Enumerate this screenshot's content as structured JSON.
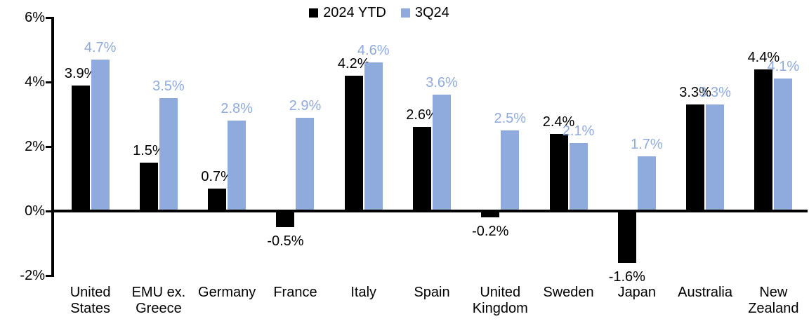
{
  "chart_data": {
    "type": "bar",
    "title": "",
    "xlabel": "",
    "ylabel": "",
    "categories": [
      "United\nStates",
      "EMU ex.\nGreece",
      "Germany",
      "France",
      "Italy",
      "Spain",
      "United\nKingdom",
      "Sweden",
      "Japan",
      "Australia",
      "New\nZealand"
    ],
    "series": [
      {
        "name": "2024 YTD",
        "color": "#000000",
        "values": [
          3.9,
          1.5,
          0.7,
          -0.5,
          4.2,
          2.6,
          -0.2,
          2.4,
          -1.6,
          3.3,
          4.4
        ],
        "labels": [
          "3.9%",
          "1.5%",
          "0.7%",
          "-0.5%",
          "4.2%",
          "2.6%",
          "-0.2%",
          "2.4%",
          "-1.6%",
          "3.3%",
          "4.4%"
        ]
      },
      {
        "name": "3Q24",
        "color": "#8FAADC",
        "values": [
          4.7,
          3.5,
          2.8,
          2.9,
          4.6,
          3.6,
          2.5,
          2.1,
          1.7,
          3.3,
          4.1
        ],
        "labels": [
          "4.7%",
          "3.5%",
          "2.8%",
          "2.9%",
          "4.6%",
          "3.6%",
          "2.5%",
          "2.1%",
          "1.7%",
          "3.3%",
          "4.1%"
        ]
      }
    ],
    "ylim": [
      -2,
      6
    ],
    "yticks": [
      {
        "value": 6,
        "label": "6%"
      },
      {
        "value": 4,
        "label": "4%"
      },
      {
        "value": 2,
        "label": "2%"
      },
      {
        "value": 0,
        "label": "0%"
      },
      {
        "value": -2,
        "label": "-2%"
      }
    ],
    "grid": false,
    "legend_position": "top-center",
    "value_label_position": "outside-end"
  }
}
